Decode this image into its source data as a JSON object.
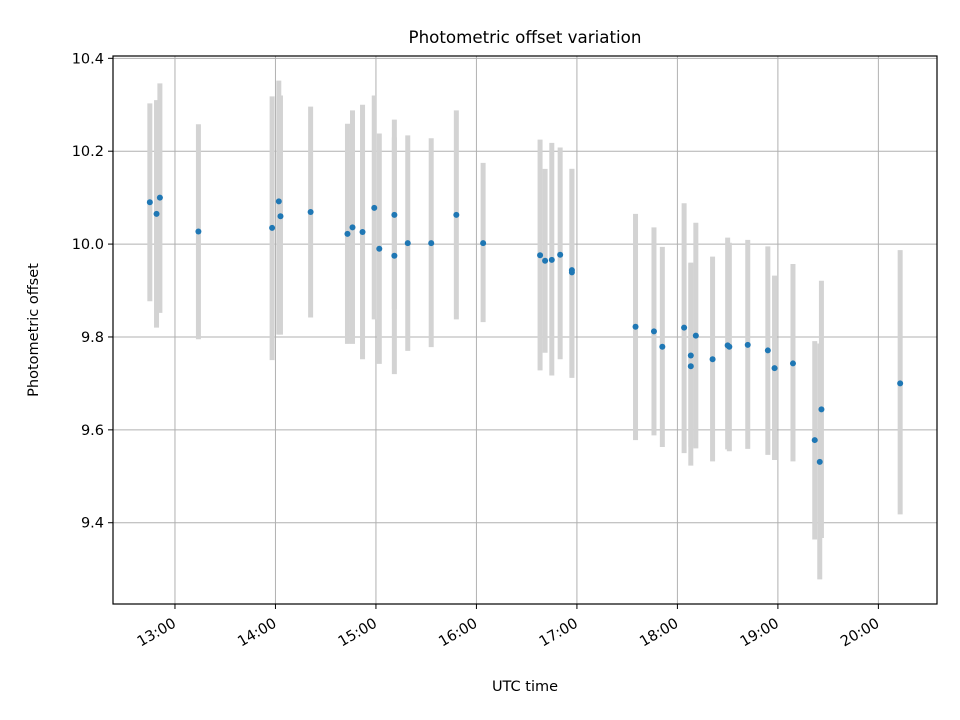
{
  "chart_data": {
    "type": "scatter",
    "title": "Photometric offset variation",
    "xlabel": "UTC time",
    "ylabel": "Photometric offset",
    "x_ticks": [
      "13:00",
      "14:00",
      "15:00",
      "16:00",
      "17:00",
      "18:00",
      "19:00",
      "20:00"
    ],
    "y_ticks": [
      "9.4",
      "9.6",
      "9.8",
      "10.0",
      "10.2",
      "10.4"
    ],
    "x_range": [
      "12:23",
      "20:35"
    ],
    "ylim": [
      9.225,
      10.405
    ],
    "grid": true,
    "series": [
      {
        "x": [
          "12:45",
          "12:49",
          "12:51",
          "13:14",
          "13:58",
          "14:02",
          "14:03",
          "14:21",
          "14:43",
          "14:46",
          "14:52",
          "14:59",
          "15:02",
          "15:11",
          "15:11",
          "15:19",
          "15:33",
          "15:48",
          "16:04",
          "16:38",
          "16:41",
          "16:45",
          "16:50",
          "16:57",
          "16:57",
          "17:35",
          "17:46",
          "17:51",
          "18:04",
          "18:08",
          "18:08",
          "18:11",
          "18:21",
          "18:30",
          "18:31",
          "18:42",
          "18:54",
          "18:58",
          "19:09",
          "19:22",
          "19:25",
          "19:26",
          "20:13"
        ],
        "y": [
          10.09,
          10.065,
          10.1,
          10.027,
          10.035,
          10.092,
          10.06,
          10.069,
          10.022,
          10.036,
          10.026,
          10.078,
          9.99,
          10.063,
          9.975,
          10.002,
          10.002,
          10.063,
          10.002,
          9.976,
          9.964,
          9.966,
          9.977,
          9.939,
          9.944,
          9.822,
          9.812,
          9.779,
          9.82,
          9.76,
          9.737,
          9.803,
          9.752,
          9.782,
          9.779,
          9.783,
          9.771,
          9.733,
          9.743,
          9.578,
          9.531,
          9.644,
          9.7
        ],
        "y_low": [
          9.877,
          9.82,
          9.852,
          9.795,
          9.75,
          9.805,
          9.805,
          9.842,
          9.785,
          9.785,
          9.752,
          9.838,
          9.742,
          9.86,
          9.72,
          9.77,
          9.778,
          9.838,
          9.832,
          9.728,
          9.766,
          9.717,
          9.752,
          9.712,
          9.72,
          9.578,
          9.588,
          9.563,
          9.55,
          9.564,
          9.523,
          9.56,
          9.532,
          9.558,
          9.554,
          9.559,
          9.546,
          9.535,
          9.532,
          9.364,
          9.278,
          9.367,
          9.418
        ],
        "y_high": [
          10.303,
          10.31,
          10.346,
          10.258,
          10.318,
          10.352,
          10.32,
          10.296,
          10.259,
          10.288,
          10.3,
          10.32,
          10.238,
          10.268,
          10.23,
          10.234,
          10.228,
          10.288,
          10.175,
          10.225,
          10.162,
          10.218,
          10.208,
          10.162,
          10.162,
          10.065,
          10.036,
          9.994,
          10.088,
          9.958,
          9.96,
          10.046,
          9.973,
          10.014,
          10.003,
          10.009,
          9.995,
          9.932,
          9.957,
          9.791,
          9.786,
          9.921,
          9.987
        ],
        "color": "#1f77b4",
        "errorbar_color": "#d3d3d3"
      }
    ]
  }
}
